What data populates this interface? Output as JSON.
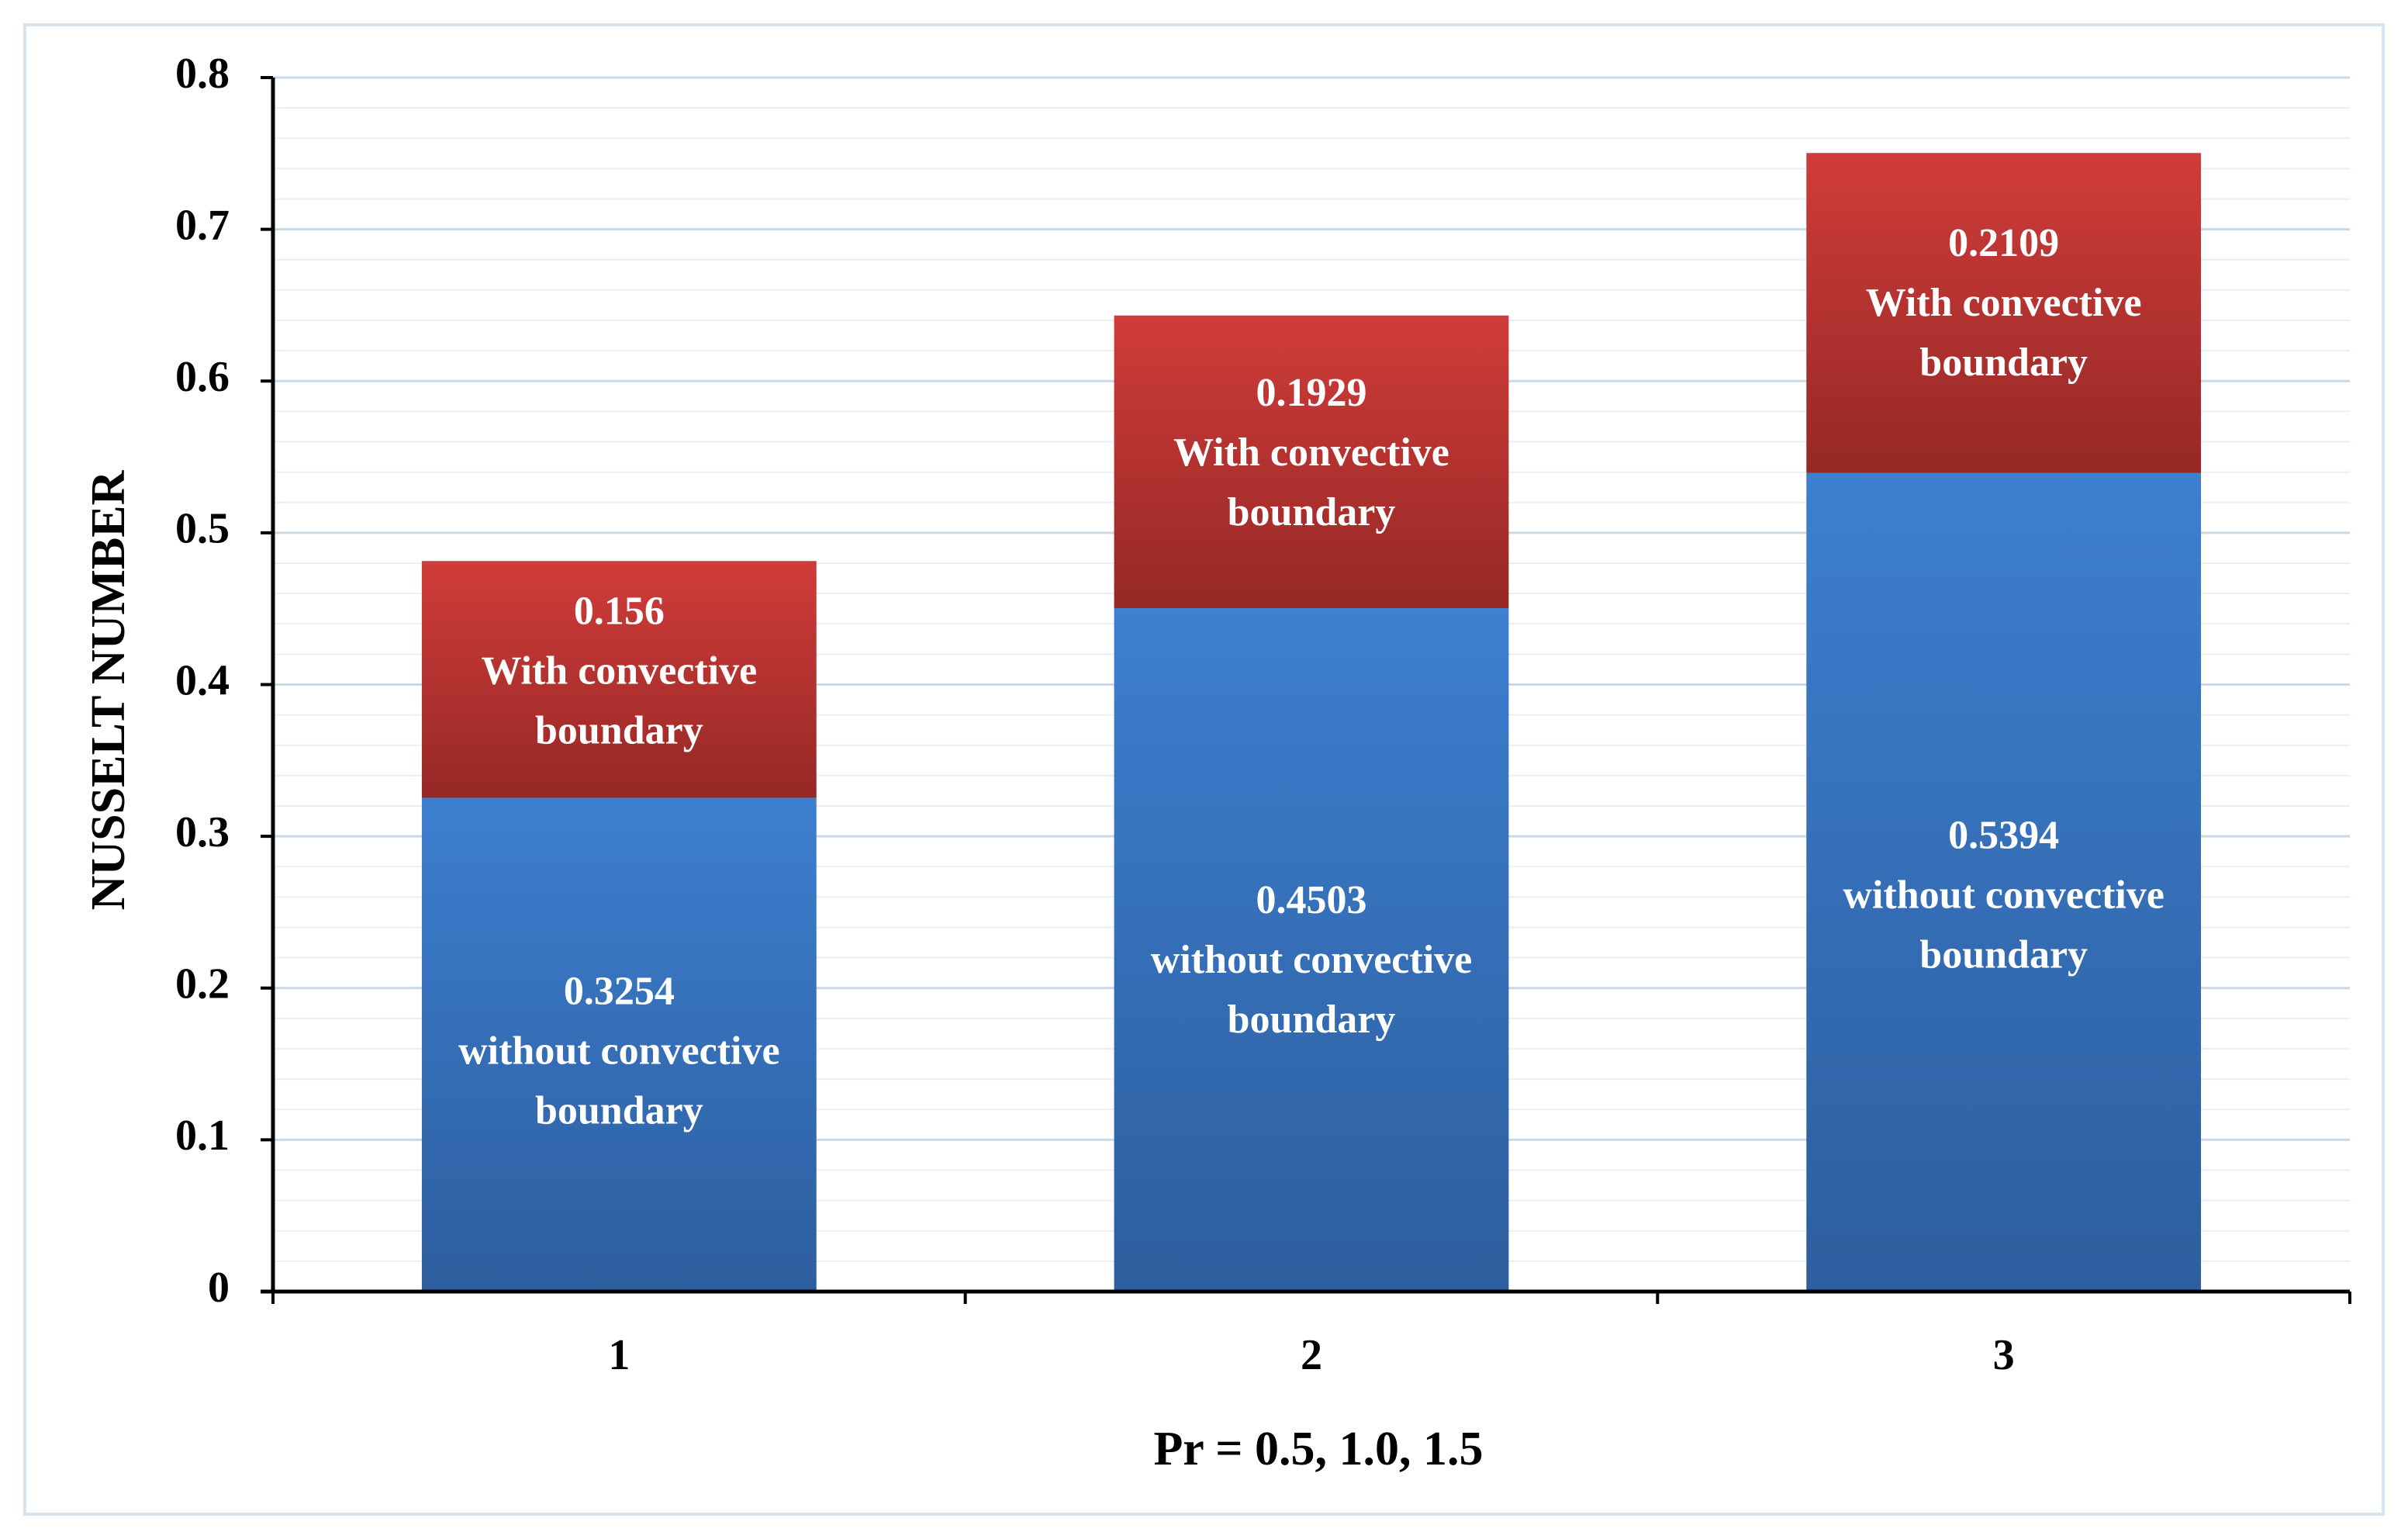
{
  "chart_data": {
    "type": "bar",
    "stacked": true,
    "categories": [
      "1",
      "2",
      "3"
    ],
    "series": [
      {
        "values": [
          0.3254,
          0.4503,
          0.5394
        ],
        "labels": [
          [
            "0.3254",
            "without  convective",
            "boundary"
          ],
          [
            "0.4503",
            "without  convective",
            "boundary"
          ],
          [
            "0.5394",
            "without  convective",
            "boundary"
          ]
        ],
        "color_top": "#3d7fd0",
        "color_bottom": "#2d5e9e"
      },
      {
        "values": [
          0.156,
          0.1929,
          0.2109
        ],
        "labels": [
          [
            "0.156",
            "With  convective",
            "boundary"
          ],
          [
            "0.1929",
            "With  convective",
            "boundary"
          ],
          [
            "0.2109",
            "With  convective",
            "boundary"
          ]
        ],
        "color_top": "#d03c3a",
        "color_bottom": "#962826"
      }
    ],
    "xlabel": "Pr = 0.5, 1.0, 1.5",
    "ylabel": "NUSSELT NUMBER",
    "ylim": [
      0,
      0.8
    ],
    "yticks": [
      "0",
      "0.1",
      "0.2",
      "0.3",
      "0.4",
      "0.5",
      "0.6",
      "0.7",
      "0.8"
    ],
    "grid": true,
    "legend": false
  }
}
